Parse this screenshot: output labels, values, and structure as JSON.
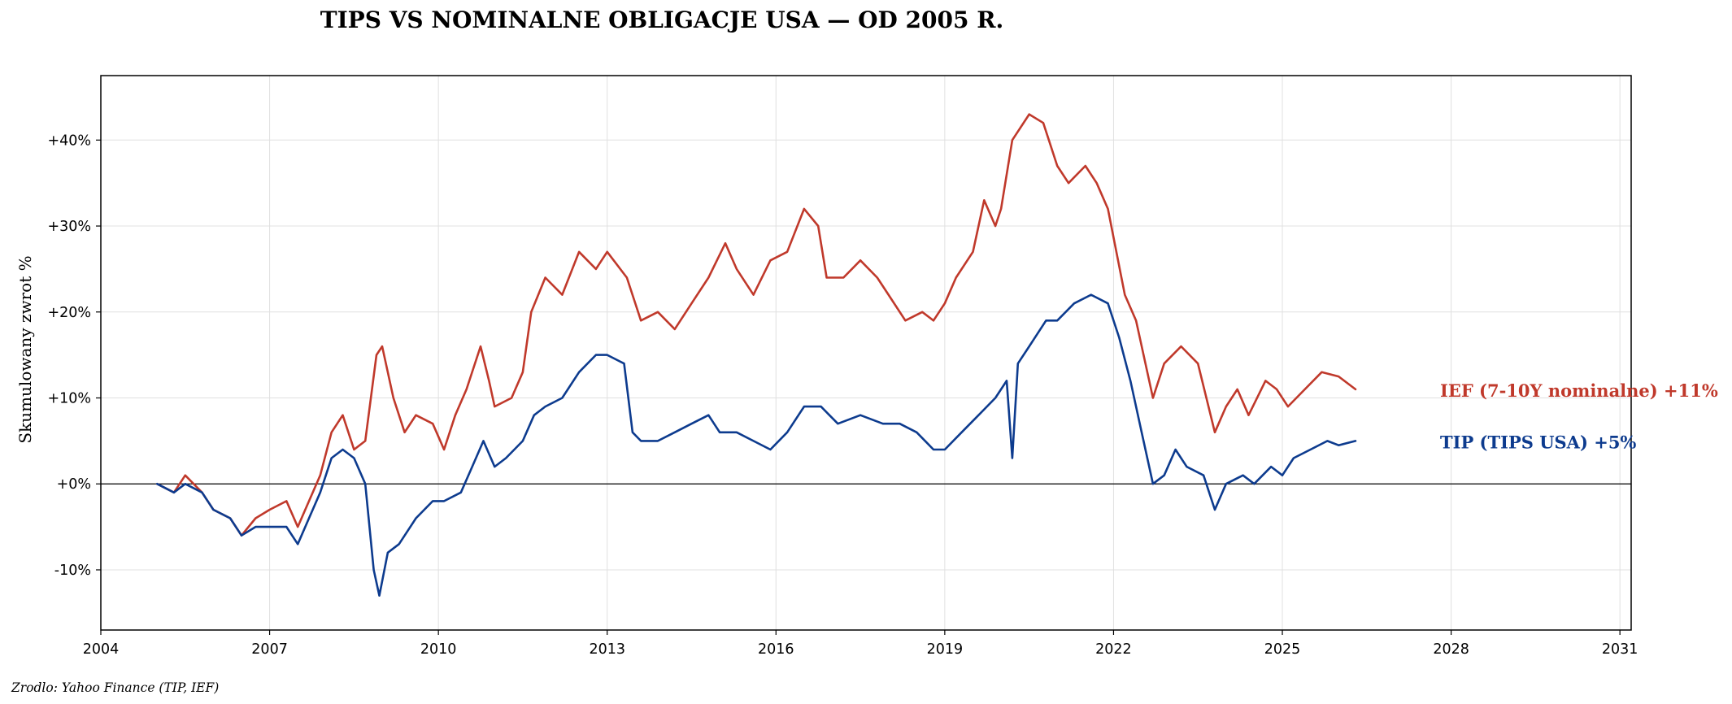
{
  "title": "TIPS VS NOMINALNE OBLIGACJE USA — OD 2005 R.",
  "source": "Zrodlo: Yahoo Finance (TIP, IEF)",
  "colors": {
    "ief": "#c0392b",
    "tip": "#0d3b8e",
    "zero_line": "#000000",
    "grid": "#e0e0e0"
  },
  "chart_data": {
    "type": "line",
    "title": "TIPS VS NOMINALNE OBLIGACJE USA — OD 2005 R.",
    "xlabel": "",
    "ylabel": "Skumulowany zwrot %",
    "xlim": [
      2004.0,
      2031.2
    ],
    "ylim": [
      -17,
      47.5
    ],
    "x_ticks": [
      2004,
      2007,
      2010,
      2013,
      2016,
      2019,
      2022,
      2025,
      2028,
      2031
    ],
    "y_ticks": [
      -10,
      0,
      10,
      20,
      30,
      40
    ],
    "y_tick_labels": [
      "-10%",
      "+0%",
      "+10%",
      "+20%",
      "+30%",
      "+40%"
    ],
    "grid": true,
    "zero_line": true,
    "series": [
      {
        "name": "IEF (7-10Y nominalne)",
        "label": "IEF (7-10Y nominalne)  +11%",
        "final_return": "+11%",
        "color": "#c0392b",
        "points": [
          [
            2005.0,
            0
          ],
          [
            2005.3,
            -1
          ],
          [
            2005.5,
            1
          ],
          [
            2005.8,
            -1
          ],
          [
            2006.0,
            -3
          ],
          [
            2006.3,
            -4
          ],
          [
            2006.5,
            -6
          ],
          [
            2006.75,
            -4
          ],
          [
            2007.0,
            -3
          ],
          [
            2007.3,
            -2
          ],
          [
            2007.5,
            -5
          ],
          [
            2007.7,
            -2
          ],
          [
            2007.9,
            1
          ],
          [
            2008.1,
            6
          ],
          [
            2008.3,
            8
          ],
          [
            2008.5,
            4
          ],
          [
            2008.7,
            5
          ],
          [
            2008.9,
            15
          ],
          [
            2009.0,
            16
          ],
          [
            2009.2,
            10
          ],
          [
            2009.4,
            6
          ],
          [
            2009.6,
            8
          ],
          [
            2009.9,
            7
          ],
          [
            2010.1,
            4
          ],
          [
            2010.3,
            8
          ],
          [
            2010.5,
            11
          ],
          [
            2010.75,
            16
          ],
          [
            2010.9,
            12
          ],
          [
            2011.0,
            9
          ],
          [
            2011.3,
            10
          ],
          [
            2011.5,
            13
          ],
          [
            2011.65,
            20
          ],
          [
            2011.9,
            24
          ],
          [
            2012.2,
            22
          ],
          [
            2012.5,
            27
          ],
          [
            2012.8,
            25
          ],
          [
            2013.0,
            27
          ],
          [
            2013.35,
            24
          ],
          [
            2013.6,
            19
          ],
          [
            2013.9,
            20
          ],
          [
            2014.2,
            18
          ],
          [
            2014.5,
            21
          ],
          [
            2014.8,
            24
          ],
          [
            2015.1,
            28
          ],
          [
            2015.3,
            25
          ],
          [
            2015.6,
            22
          ],
          [
            2015.9,
            26
          ],
          [
            2016.2,
            27
          ],
          [
            2016.5,
            32
          ],
          [
            2016.75,
            30
          ],
          [
            2016.9,
            24
          ],
          [
            2017.2,
            24
          ],
          [
            2017.5,
            26
          ],
          [
            2017.8,
            24
          ],
          [
            2018.0,
            22
          ],
          [
            2018.3,
            19
          ],
          [
            2018.6,
            20
          ],
          [
            2018.8,
            19
          ],
          [
            2019.0,
            21
          ],
          [
            2019.2,
            24
          ],
          [
            2019.5,
            27
          ],
          [
            2019.7,
            33
          ],
          [
            2019.9,
            30
          ],
          [
            2020.0,
            32
          ],
          [
            2020.2,
            40
          ],
          [
            2020.5,
            43
          ],
          [
            2020.75,
            42
          ],
          [
            2021.0,
            37
          ],
          [
            2021.2,
            35
          ],
          [
            2021.5,
            37
          ],
          [
            2021.7,
            35
          ],
          [
            2021.9,
            32
          ],
          [
            2022.2,
            22
          ],
          [
            2022.4,
            19
          ],
          [
            2022.7,
            10
          ],
          [
            2022.9,
            14
          ],
          [
            2023.2,
            16
          ],
          [
            2023.5,
            14
          ],
          [
            2023.8,
            6
          ],
          [
            2024.0,
            9
          ],
          [
            2024.2,
            11
          ],
          [
            2024.4,
            8
          ],
          [
            2024.7,
            12
          ],
          [
            2024.9,
            11
          ],
          [
            2025.1,
            9
          ],
          [
            2025.4,
            11
          ],
          [
            2025.7,
            13
          ],
          [
            2026.0,
            12.5
          ],
          [
            2026.3,
            11
          ]
        ]
      },
      {
        "name": "TIP (TIPS USA)",
        "label": "TIP (TIPS USA)  +5%",
        "final_return": "+5%",
        "color": "#0d3b8e",
        "points": [
          [
            2005.0,
            0
          ],
          [
            2005.3,
            -1
          ],
          [
            2005.5,
            0
          ],
          [
            2005.8,
            -1
          ],
          [
            2006.0,
            -3
          ],
          [
            2006.3,
            -4
          ],
          [
            2006.5,
            -6
          ],
          [
            2006.75,
            -5
          ],
          [
            2007.0,
            -5
          ],
          [
            2007.3,
            -5
          ],
          [
            2007.5,
            -7
          ],
          [
            2007.7,
            -4
          ],
          [
            2007.9,
            -1
          ],
          [
            2008.1,
            3
          ],
          [
            2008.3,
            4
          ],
          [
            2008.5,
            3
          ],
          [
            2008.7,
            0
          ],
          [
            2008.85,
            -10
          ],
          [
            2008.95,
            -13
          ],
          [
            2009.1,
            -8
          ],
          [
            2009.3,
            -7
          ],
          [
            2009.6,
            -4
          ],
          [
            2009.9,
            -2
          ],
          [
            2010.1,
            -2
          ],
          [
            2010.4,
            -1
          ],
          [
            2010.6,
            2
          ],
          [
            2010.8,
            5
          ],
          [
            2011.0,
            2
          ],
          [
            2011.2,
            3
          ],
          [
            2011.5,
            5
          ],
          [
            2011.7,
            8
          ],
          [
            2011.9,
            9
          ],
          [
            2012.2,
            10
          ],
          [
            2012.5,
            13
          ],
          [
            2012.8,
            15
          ],
          [
            2013.0,
            15
          ],
          [
            2013.3,
            14
          ],
          [
            2013.45,
            6
          ],
          [
            2013.6,
            5
          ],
          [
            2013.9,
            5
          ],
          [
            2014.2,
            6
          ],
          [
            2014.5,
            7
          ],
          [
            2014.8,
            8
          ],
          [
            2015.0,
            6
          ],
          [
            2015.3,
            6
          ],
          [
            2015.6,
            5
          ],
          [
            2015.9,
            4
          ],
          [
            2016.2,
            6
          ],
          [
            2016.5,
            9
          ],
          [
            2016.8,
            9
          ],
          [
            2017.1,
            7
          ],
          [
            2017.5,
            8
          ],
          [
            2017.9,
            7
          ],
          [
            2018.2,
            7
          ],
          [
            2018.5,
            6
          ],
          [
            2018.8,
            4
          ],
          [
            2019.0,
            4
          ],
          [
            2019.3,
            6
          ],
          [
            2019.6,
            8
          ],
          [
            2019.9,
            10
          ],
          [
            2020.1,
            12
          ],
          [
            2020.2,
            3
          ],
          [
            2020.3,
            14
          ],
          [
            2020.5,
            16
          ],
          [
            2020.8,
            19
          ],
          [
            2021.0,
            19
          ],
          [
            2021.3,
            21
          ],
          [
            2021.6,
            22
          ],
          [
            2021.9,
            21
          ],
          [
            2022.1,
            17
          ],
          [
            2022.3,
            12
          ],
          [
            2022.5,
            6
          ],
          [
            2022.7,
            0
          ],
          [
            2022.9,
            1
          ],
          [
            2023.1,
            4
          ],
          [
            2023.3,
            2
          ],
          [
            2023.6,
            1
          ],
          [
            2023.8,
            -3
          ],
          [
            2024.0,
            0
          ],
          [
            2024.3,
            1
          ],
          [
            2024.5,
            0
          ],
          [
            2024.8,
            2
          ],
          [
            2025.0,
            1
          ],
          [
            2025.2,
            3
          ],
          [
            2025.5,
            4
          ],
          [
            2025.8,
            5
          ],
          [
            2026.0,
            4.5
          ],
          [
            2026.3,
            5
          ]
        ]
      }
    ]
  }
}
